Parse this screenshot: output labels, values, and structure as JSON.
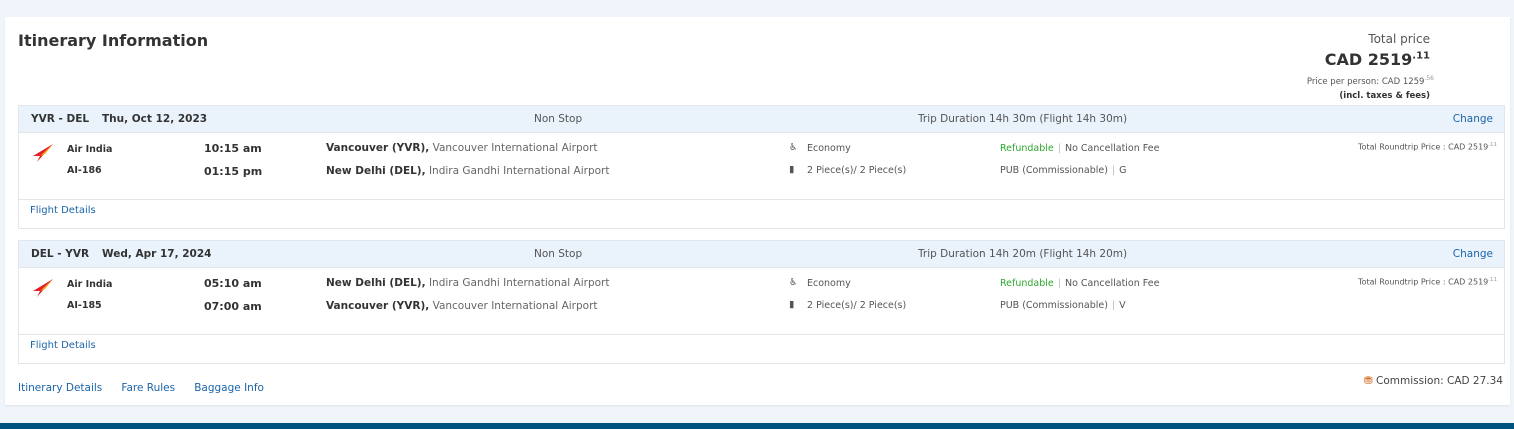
{
  "title": "Itinerary Information",
  "price": {
    "label": "Total price",
    "currency": "CAD",
    "main": "2519",
    "cents": ".11",
    "per_person_label": "Price per person: CAD 1259",
    "per_person_cents": ".56",
    "incl": "(incl. taxes & fees)"
  },
  "segments": [
    {
      "route": "YVR - DEL",
      "date": "Thu, Oct 12, 2023",
      "stops": "Non Stop",
      "duration": "Trip Duration 14h 30m (Flight 14h 30m)",
      "change": "Change",
      "airline": "Air India",
      "flight": "AI-186",
      "dep_time": "10:15 am",
      "arr_time": "01:15 pm",
      "dep_city": "Vancouver (YVR),",
      "dep_airport": "Vancouver International Airport",
      "arr_city": "New Delhi (DEL),",
      "arr_airport": "Indira Gandhi International Airport",
      "cabin": "Economy",
      "baggage": "2 Piece(s)/ 2 Piece(s)",
      "refundable": "Refundable",
      "cancel": "No Cancellation Fee",
      "fare": "PUB (Commissionable)",
      "class": "G",
      "total": "Total Roundtrip Price : CAD 2519",
      "total_cents": ".11",
      "details": "Flight Details"
    },
    {
      "route": "DEL - YVR",
      "date": "Wed, Apr 17, 2024",
      "stops": "Non Stop",
      "duration": "Trip Duration 14h 20m (Flight 14h 20m)",
      "change": "Change",
      "airline": "Air India",
      "flight": "AI-185",
      "dep_time": "05:10 am",
      "arr_time": "07:00 am",
      "dep_city": "New Delhi (DEL),",
      "dep_airport": "Indira Gandhi International Airport",
      "arr_city": "Vancouver (YVR),",
      "arr_airport": "Vancouver International Airport",
      "cabin": "Economy",
      "baggage": "2 Piece(s)/ 2 Piece(s)",
      "refundable": "Refundable",
      "cancel": "No Cancellation Fee",
      "fare": "PUB (Commissionable)",
      "class": "V",
      "total": "Total Roundtrip Price : CAD 2519",
      "total_cents": ".11",
      "details": "Flight Details"
    }
  ],
  "footer": {
    "links": [
      "Itinerary Details",
      "Fare Rules",
      "Baggage Info"
    ],
    "commission": "Commission: CAD 27.34"
  },
  "colors": {
    "accent": "#1b64a8",
    "refundable": "#2ea82e",
    "bar": "#00527f",
    "commission_icon": "#d2691e"
  }
}
